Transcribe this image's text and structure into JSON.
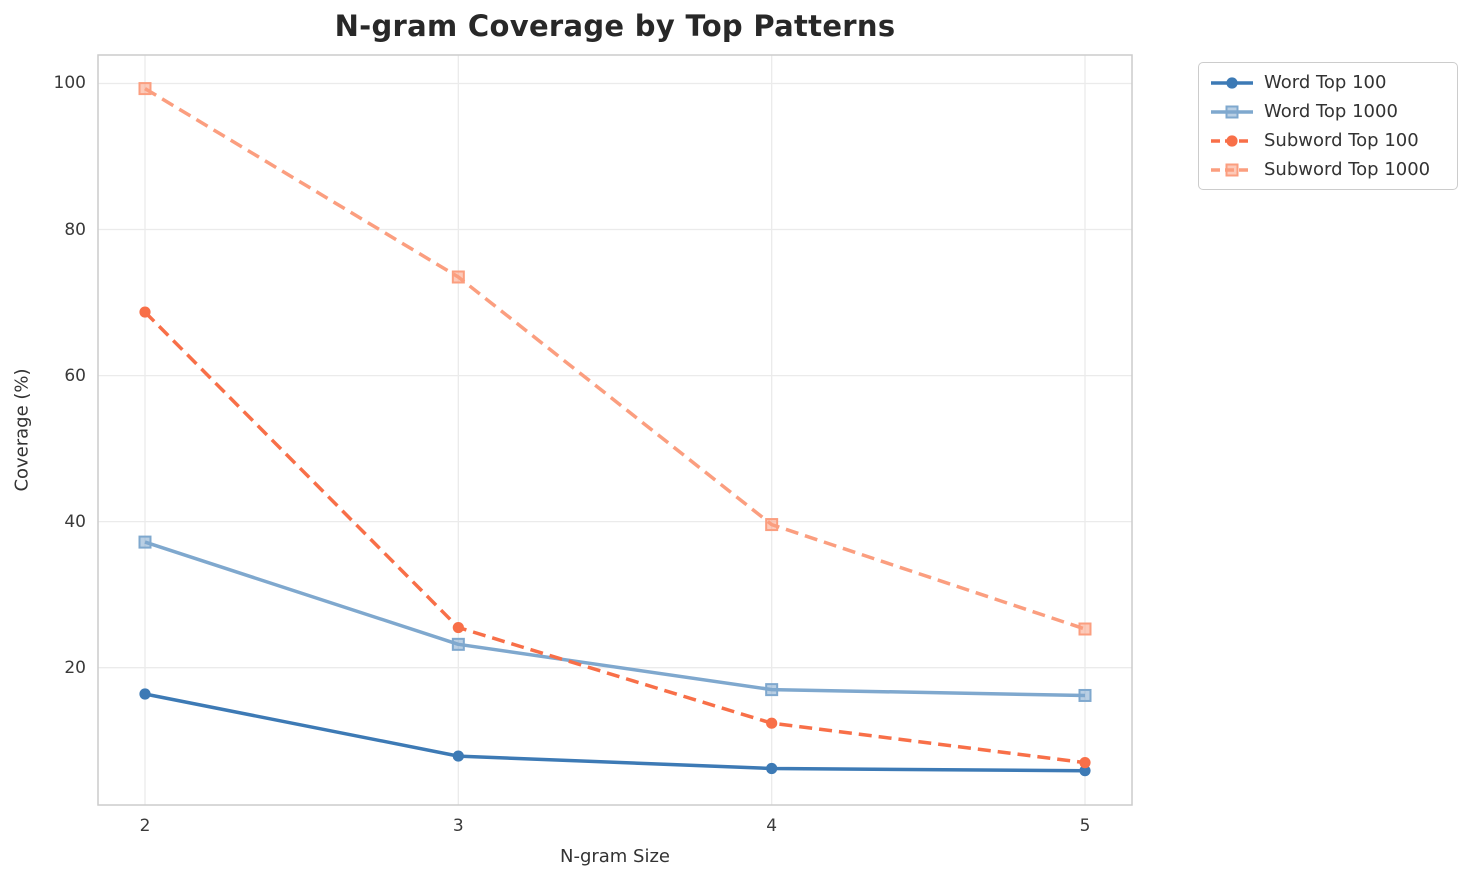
{
  "chart_data": {
    "type": "line",
    "title": "N-gram Coverage by Top Patterns",
    "xlabel": "N-gram Size",
    "ylabel": "Coverage (%)",
    "x": [
      2,
      3,
      4,
      5
    ],
    "xtick_labels": [
      "2",
      "3",
      "4",
      "5"
    ],
    "yticks": [
      20,
      40,
      60,
      80,
      100
    ],
    "ytick_labels": [
      "20",
      "40",
      "60",
      "80",
      "100"
    ],
    "xlim": [
      1.85,
      5.15
    ],
    "ylim": [
      1.2,
      103.9
    ],
    "grid": true,
    "legend_position": "outside-upper-right",
    "series": [
      {
        "name": "Word Top 100",
        "values": [
          16.4,
          7.9,
          6.2,
          5.9
        ],
        "color": "#3D7AB5",
        "line_style": "solid",
        "marker": "circle"
      },
      {
        "name": "Word Top 1000",
        "values": [
          37.2,
          23.2,
          17.0,
          16.2
        ],
        "color": "#7FA8CE",
        "line_style": "solid",
        "marker": "square"
      },
      {
        "name": "Subword Top 100",
        "values": [
          68.7,
          25.5,
          12.4,
          7.0
        ],
        "color": "#F86F48",
        "line_style": "dashed",
        "marker": "circle"
      },
      {
        "name": "Subword Top 1000",
        "values": [
          99.3,
          73.5,
          39.6,
          25.3
        ],
        "color": "#FB9E7F",
        "line_style": "dashed",
        "marker": "square"
      }
    ],
    "colors": {
      "grid": "#EBEBEB",
      "spine": "#CCCCCC",
      "title_text": "#282828",
      "tick_text": "#3A3A3A",
      "label_text": "#333333",
      "legend_text": "#333333",
      "background": "#FFFFFF"
    }
  }
}
